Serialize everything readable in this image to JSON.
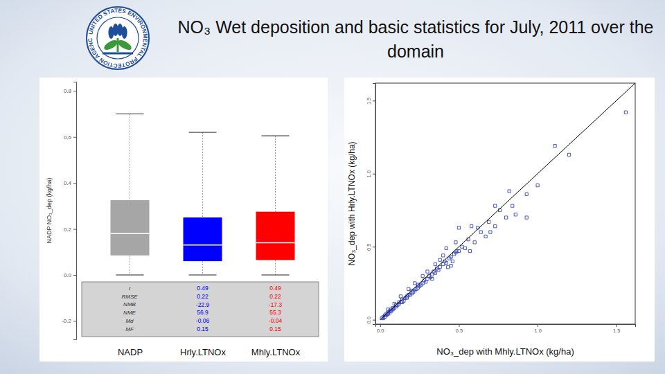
{
  "title": "NO₃ Wet deposition and basic statistics for July, 2011 over the domain",
  "logo_text": "UNITED STATES ENVIRONMENTAL PROTECTION AGENCY",
  "chart_data": [
    {
      "type": "box",
      "y_label": "NADP NO₃_dep (kg/ha)",
      "categories": [
        "NADP",
        "Hrly.LTNOx",
        "Mhly.LTNOx"
      ],
      "colors": [
        "#a6a6a6",
        "#0000ff",
        "#ff0000"
      ],
      "ylim": [
        -0.28,
        0.84
      ],
      "yticks": [
        {
          "value": -0.2,
          "label": "-0.2"
        },
        {
          "value": 0,
          "label": "0.0"
        },
        0.2,
        0.4,
        0.6,
        0.8
      ],
      "low": [
        0,
        0,
        0
      ],
      "q1": [
        0.085,
        0.06,
        0.065
      ],
      "median": [
        0.18,
        0.13,
        0.14
      ],
      "q3": [
        0.325,
        0.25,
        0.275
      ],
      "high": [
        0.7,
        0.62,
        0.605
      ],
      "stats": {
        "labels": [
          "r",
          "RMSE",
          "NMB",
          "NME",
          "Md",
          "MF"
        ],
        "values": [
          null,
          [
            0.49,
            0.22,
            -22.9,
            56.9,
            -0.06,
            0.15
          ],
          [
            0.49,
            0.22,
            -17.3,
            55.3,
            -0.04,
            0.15
          ]
        ]
      }
    },
    {
      "type": "scatter",
      "x_label": "NO₃_dep with Mhly.LTNOx (kg/ha)",
      "y_label": "NO₃_dep with Hrly.LTNOx (kg/ha)",
      "xlim": [
        -0.03,
        1.62
      ],
      "ylim": [
        -0.03,
        1.62
      ],
      "xticks": [
        {
          "value": 0,
          "label": "0.0"
        },
        0.5,
        {
          "value": 1,
          "label": "1.0"
        },
        1.5
      ],
      "yticks": [
        {
          "value": 0,
          "label": "0.0"
        },
        0.5,
        {
          "value": 1,
          "label": "1.0"
        },
        1.5
      ],
      "series": [
        {
          "type": "scatter",
          "marker": "square",
          "color": "#3344bb",
          "x": [
            0.01,
            0.02,
            0.02,
            0.03,
            0.03,
            0.04,
            0.04,
            0.05,
            0.05,
            0.06,
            0.06,
            0.07,
            0.07,
            0.08,
            0.08,
            0.09,
            0.1,
            0.1,
            0.11,
            0.12,
            0.12,
            0.13,
            0.14,
            0.14,
            0.15,
            0.16,
            0.17,
            0.17,
            0.18,
            0.19,
            0.2,
            0.2,
            0.21,
            0.22,
            0.23,
            0.24,
            0.24,
            0.25,
            0.26,
            0.27,
            0.28,
            0.29,
            0.3,
            0.31,
            0.32,
            0.33,
            0.34,
            0.35,
            0.36,
            0.37,
            0.38,
            0.4,
            0.41,
            0.42,
            0.44,
            0.45,
            0.47,
            0.48,
            0.5,
            0.52,
            0.13,
            0.09,
            0.18,
            0.27,
            0.33,
            0.22,
            0.38,
            0.43,
            0.3,
            0.05,
            0.46,
            0.35,
            0.48,
            0.49,
            0.5,
            0.54,
            0.56,
            0.58,
            0.6,
            0.62,
            0.67,
            0.69,
            0.7,
            0.73,
            0.73,
            0.76,
            0.8,
            0.82,
            0.84,
            0.86,
            0.93,
            0.93,
            1.0,
            1.11,
            1.2,
            1.56,
            0.42,
            0.45,
            0.64,
            0.57,
            0.4
          ],
          "values": [
            0.01,
            0.01,
            0.02,
            0.02,
            0.03,
            0.03,
            0.04,
            0.04,
            0.05,
            0.05,
            0.06,
            0.06,
            0.07,
            0.07,
            0.08,
            0.08,
            0.09,
            0.1,
            0.1,
            0.11,
            0.12,
            0.12,
            0.12,
            0.14,
            0.13,
            0.15,
            0.15,
            0.16,
            0.17,
            0.17,
            0.18,
            0.2,
            0.19,
            0.2,
            0.21,
            0.22,
            0.24,
            0.23,
            0.24,
            0.25,
            0.27,
            0.26,
            0.28,
            0.3,
            0.29,
            0.31,
            0.33,
            0.32,
            0.35,
            0.34,
            0.36,
            0.38,
            0.4,
            0.39,
            0.42,
            0.43,
            0.45,
            0.46,
            0.47,
            0.5,
            0.16,
            0.11,
            0.21,
            0.3,
            0.28,
            0.25,
            0.41,
            0.36,
            0.33,
            0.07,
            0.4,
            0.38,
            0.53,
            0.47,
            0.63,
            0.49,
            0.55,
            0.64,
            0.53,
            0.63,
            0.57,
            0.67,
            0.6,
            0.64,
            0.78,
            0.75,
            0.7,
            0.88,
            0.78,
            0.72,
            0.7,
            0.86,
            0.92,
            1.19,
            1.13,
            1.42,
            0.49,
            0.37,
            0.6,
            0.47,
            0.44
          ]
        },
        {
          "type": "line",
          "line_style": "solid",
          "color": "#000000",
          "x": [
            0,
            1.62
          ],
          "values": [
            0,
            1.62
          ]
        }
      ]
    }
  ]
}
